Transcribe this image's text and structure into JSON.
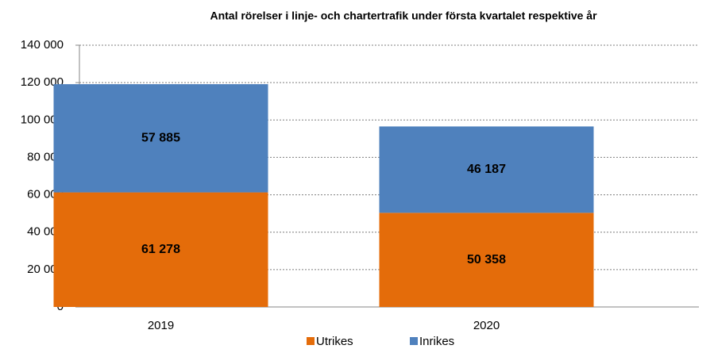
{
  "chart_data": {
    "type": "stacked_bar",
    "title": "Antal rörelser i linje- och chartertrafik under första kvartalet respektive år",
    "categories": [
      "2019",
      "2020"
    ],
    "series": [
      {
        "name": "Utrikes",
        "color": "#e46c0a",
        "values": [
          61278,
          50358
        ],
        "value_labels": [
          "61 278",
          "50 358"
        ]
      },
      {
        "name": "Inrikes",
        "color": "#4f81bd",
        "values": [
          57885,
          46187
        ],
        "value_labels": [
          "57 885",
          "46 187"
        ]
      }
    ],
    "ylim": [
      0,
      140000
    ],
    "yticks": [
      0,
      {
        "value": 20000,
        "label": "20 000"
      },
      {
        "value": 40000,
        "label": "40 000"
      },
      {
        "value": 60000,
        "label": "60 000"
      },
      {
        "value": 80000,
        "label": "80 000"
      },
      {
        "value": 100000,
        "label": "100 000"
      },
      {
        "value": 120000,
        "label": "120 000"
      },
      {
        "value": 140000,
        "label": "140 000"
      }
    ],
    "grid": true,
    "legend": "bottom"
  }
}
